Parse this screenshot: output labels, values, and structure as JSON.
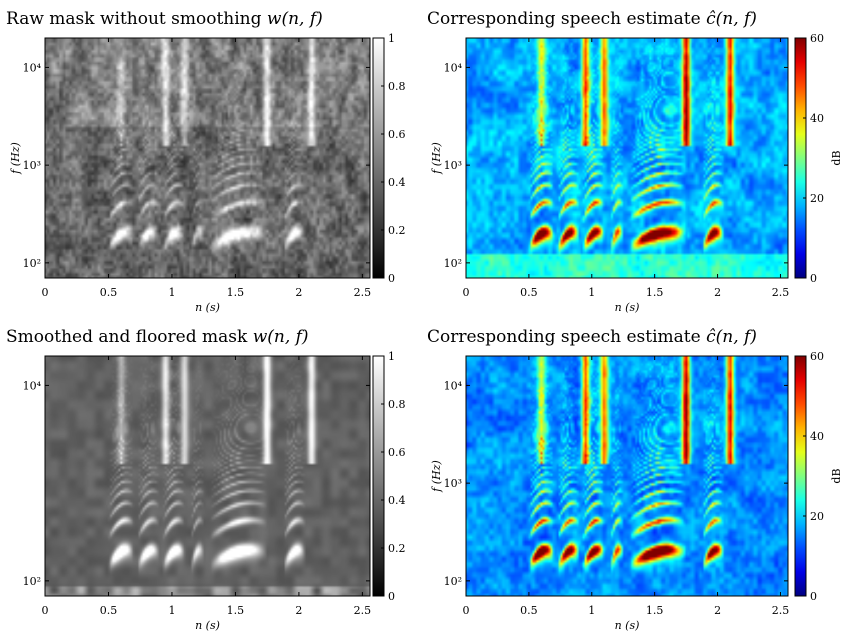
{
  "chart_data": [
    {
      "type": "heatmap",
      "title": "Raw mask without smoothing w(n, f)",
      "title_plain": "Raw mask without smoothing ",
      "title_math": "w(n, f)",
      "xlabel": "n (s)",
      "ylabel": "f (Hz)",
      "x_ticks": [
        "0",
        "0.5",
        "1",
        "1.5",
        "2",
        "2.5"
      ],
      "x_tick_values": [
        0,
        0.5,
        1,
        1.5,
        2,
        2.5
      ],
      "xlim": [
        0,
        2.56
      ],
      "y_ticks": [
        "10²",
        "10³",
        "10⁴"
      ],
      "y_tick_values": [
        100,
        1000,
        10000
      ],
      "ylim": [
        70,
        20000
      ],
      "y_scale": "log",
      "colorbar": {
        "ticks": [
          "0",
          "0.2",
          "0.4",
          "0.6",
          "0.8",
          "1"
        ],
        "values": [
          0,
          0.2,
          0.4,
          0.6,
          0.8,
          1
        ],
        "range": [
          0,
          1
        ],
        "label": "",
        "colormap": "gray"
      },
      "variant": "raw_mask"
    },
    {
      "type": "heatmap",
      "title": "Corresponding speech estimate ĉ(n, f)",
      "title_plain": "Corresponding speech estimate ",
      "title_math": "ĉ(n, f)",
      "xlabel": "n (s)",
      "ylabel": "f (Hz)",
      "x_ticks": [
        "0",
        "0.5",
        "1",
        "1.5",
        "2",
        "2.5"
      ],
      "x_tick_values": [
        0,
        0.5,
        1,
        1.5,
        2,
        2.5
      ],
      "xlim": [
        0,
        2.56
      ],
      "y_ticks": [
        "10²",
        "10³",
        "10⁴"
      ],
      "y_tick_values": [
        100,
        1000,
        10000
      ],
      "ylim": [
        70,
        20000
      ],
      "y_scale": "log",
      "colorbar": {
        "ticks": [
          "0",
          "20",
          "40",
          "60"
        ],
        "values": [
          0,
          20,
          40,
          60
        ],
        "range": [
          0,
          60
        ],
        "label": "dB",
        "colormap": "jet"
      },
      "variant": "raw_speech"
    },
    {
      "type": "heatmap",
      "title": "Smoothed and floored mask w(n, f)",
      "title_plain": "Smoothed and floored mask ",
      "title_math": "w(n, f)",
      "xlabel": "n (s)",
      "ylabel": "",
      "x_ticks": [
        "0",
        "0.5",
        "1",
        "1.5",
        "2",
        "2.5"
      ],
      "x_tick_values": [
        0,
        0.5,
        1,
        1.5,
        2,
        2.5
      ],
      "xlim": [
        0,
        2.56
      ],
      "y_ticks": [
        "10²",
        "10⁴"
      ],
      "y_tick_values": [
        100,
        10000
      ],
      "ylim": [
        70,
        20000
      ],
      "y_scale": "log",
      "colorbar": {
        "ticks": [
          "0",
          "0.2",
          "0.4",
          "0.6",
          "0.8",
          "1"
        ],
        "values": [
          0,
          0.2,
          0.4,
          0.6,
          0.8,
          1
        ],
        "range": [
          0,
          1
        ],
        "label": "",
        "colormap": "gray"
      },
      "variant": "smooth_mask"
    },
    {
      "type": "heatmap",
      "title": "Corresponding speech estimate ĉ(n, f)",
      "title_plain": "Corresponding speech estimate ",
      "title_math": "ĉ(n, f)",
      "xlabel": "n (s)",
      "ylabel": "f (Hz)",
      "x_ticks": [
        "0",
        "0.5",
        "1",
        "1.5",
        "2",
        "2.5"
      ],
      "x_tick_values": [
        0,
        0.5,
        1,
        1.5,
        2,
        2.5
      ],
      "xlim": [
        0,
        2.56
      ],
      "y_ticks": [
        "10²",
        "10³",
        "10⁴"
      ],
      "y_tick_values": [
        100,
        1000,
        10000
      ],
      "ylim": [
        70,
        20000
      ],
      "y_scale": "log",
      "colorbar": {
        "ticks": [
          "0",
          "20",
          "40",
          "60"
        ],
        "values": [
          0,
          20,
          40,
          60
        ],
        "range": [
          0,
          60
        ],
        "label": "dB",
        "colormap": "jet"
      },
      "variant": "smooth_speech"
    }
  ]
}
